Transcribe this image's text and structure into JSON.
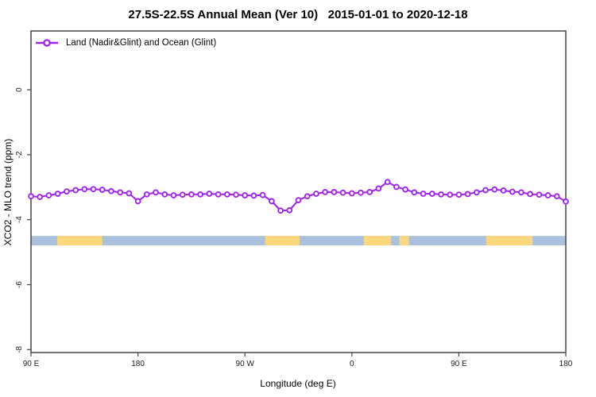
{
  "chart_data": {
    "type": "line",
    "title": "27.5S-22.5S Annual Mean (Ver 10)   2015-01-01 to 2020-12-18",
    "xlabel": "Longitude (deg E)",
    "ylabel": "XCO2 - MLO trend (ppm)",
    "xlim": [
      90,
      540
    ],
    "ylim": [
      -8.09,
      1.81
    ],
    "grid": false,
    "legend_position": "top-left",
    "x_ticks": [
      {
        "value": 90,
        "label": "90 E"
      },
      {
        "value": 180,
        "label": "180"
      },
      {
        "value": 270,
        "label": "90 W"
      },
      {
        "value": 360,
        "label": "0"
      },
      {
        "value": 450,
        "label": "90 E"
      },
      {
        "value": 540,
        "label": "180"
      }
    ],
    "y_ticks": [
      {
        "value": 0,
        "label": "0"
      },
      {
        "value": -2,
        "label": "-2"
      },
      {
        "value": -4,
        "label": "-4"
      },
      {
        "value": -6,
        "label": "-6"
      },
      {
        "value": -8,
        "label": "-8"
      }
    ],
    "series": [
      {
        "name": "Land (Nadir&Glint) and Ocean (Glint)",
        "color": "#A020F0",
        "marker": "open-circle",
        "marker_fill": "#FFFFFF",
        "x": [
          90,
          97.5,
          105,
          112.5,
          120,
          127.5,
          135,
          142.5,
          150,
          157.5,
          165,
          172.5,
          180,
          187.5,
          195,
          202.5,
          210,
          217.5,
          225,
          232.5,
          240,
          247.5,
          255,
          262.5,
          270,
          277.5,
          285,
          292.5,
          300,
          307.5,
          315,
          322.5,
          330,
          337.5,
          345,
          352.5,
          360,
          367.5,
          375,
          382.5,
          390,
          397.5,
          405,
          412.5,
          420,
          427.5,
          435,
          442.5,
          450,
          457.5,
          465,
          472.5,
          480,
          487.5,
          495,
          502.5,
          510,
          517.5,
          525,
          532.5,
          540
        ],
        "y": [
          -3.28,
          -3.3,
          -3.25,
          -3.2,
          -3.13,
          -3.09,
          -3.06,
          -3.06,
          -3.08,
          -3.12,
          -3.16,
          -3.19,
          -3.43,
          -3.22,
          -3.16,
          -3.22,
          -3.25,
          -3.23,
          -3.22,
          -3.22,
          -3.2,
          -3.22,
          -3.22,
          -3.23,
          -3.25,
          -3.26,
          -3.24,
          -3.43,
          -3.72,
          -3.71,
          -3.4,
          -3.28,
          -3.2,
          -3.15,
          -3.15,
          -3.17,
          -3.19,
          -3.17,
          -3.15,
          -3.04,
          -2.84,
          -2.99,
          -3.07,
          -3.16,
          -3.2,
          -3.2,
          -3.22,
          -3.23,
          -3.23,
          -3.21,
          -3.16,
          -3.09,
          -3.07,
          -3.1,
          -3.14,
          -3.16,
          -3.21,
          -3.23,
          -3.25,
          -3.28,
          -3.44
        ]
      }
    ],
    "surface_band": {
      "y_top": -4.5,
      "y_bottom": -4.79,
      "ocean_color": "#A9C1DE",
      "land_color": "#FBD87E",
      "ocean_extent": [
        90,
        540
      ],
      "land_segments": [
        [
          112,
          150
        ],
        [
          287,
          316
        ],
        [
          370,
          393
        ],
        [
          400,
          408
        ],
        [
          473,
          512
        ]
      ]
    },
    "axis_color": "#454545",
    "tick_label_color": "#1a1a1a"
  }
}
